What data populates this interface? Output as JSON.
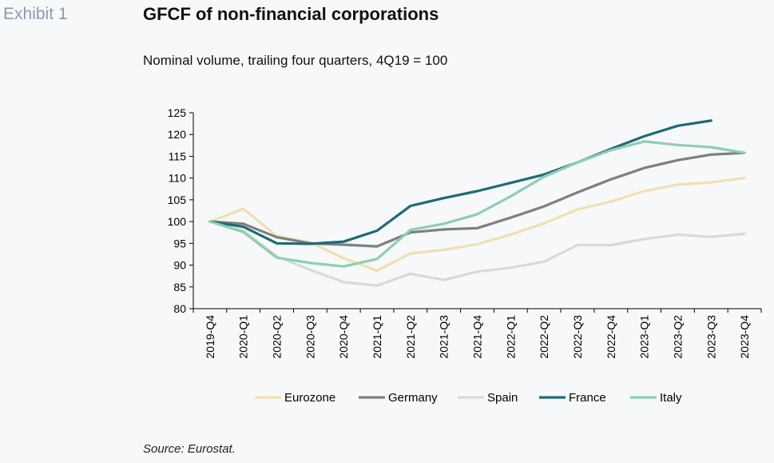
{
  "header": {
    "exhibit": "Exhibit 1",
    "title": "GFCF of non-financial corporations",
    "subtitle": "Nominal volume, trailing four quarters, 4Q19 = 100"
  },
  "footer": {
    "source": "Source: Eurostat."
  },
  "chart_data": {
    "type": "line",
    "x": [
      "2019-Q4",
      "2020-Q1",
      "2020-Q2",
      "2020-Q3",
      "2020-Q4",
      "2021-Q1",
      "2021-Q2",
      "2021-Q3",
      "2021-Q4",
      "2022-Q1",
      "2022-Q2",
      "2022-Q3",
      "2022-Q4",
      "2023-Q1",
      "2023-Q2",
      "2023-Q3",
      "2023-Q4"
    ],
    "ylim": [
      80,
      125
    ],
    "yticks": [
      80,
      85,
      90,
      95,
      100,
      105,
      110,
      115,
      120,
      125
    ],
    "grid": false,
    "legend_position": "bottom",
    "series": [
      {
        "name": "Eurozone",
        "color": "#f2dfb0",
        "values": [
          100,
          102.9,
          96.7,
          95.2,
          91.6,
          88.7,
          92.7,
          93.5,
          94.8,
          97.0,
          99.6,
          102.8,
          104.6,
          107.0,
          108.5,
          109.0,
          110.0
        ]
      },
      {
        "name": "Germany",
        "color": "#7f7f7f",
        "values": [
          100,
          99.5,
          96.4,
          95.0,
          94.7,
          94.3,
          97.5,
          98.2,
          98.5,
          100.9,
          103.5,
          106.7,
          109.7,
          112.3,
          114.1,
          115.4,
          115.8
        ]
      },
      {
        "name": "Spain",
        "color": "#d9d9d9",
        "values": [
          100,
          97.9,
          92.0,
          88.9,
          86.1,
          85.3,
          88.0,
          86.6,
          88.5,
          89.4,
          90.8,
          94.6,
          94.6,
          96.0,
          97.0,
          96.5,
          97.2
        ]
      },
      {
        "name": "France",
        "color": "#1b6b78",
        "values": [
          100,
          98.8,
          95.0,
          94.9,
          95.4,
          97.9,
          103.6,
          105.4,
          107.0,
          108.9,
          110.8,
          113.6,
          116.7,
          119.6,
          122.0,
          123.2,
          null
        ]
      },
      {
        "name": "Italy",
        "color": "#8ecfb0",
        "values": [
          100,
          97.6,
          91.7,
          90.5,
          89.7,
          91.4,
          98.1,
          99.5,
          101.7,
          105.8,
          110.3,
          113.6,
          116.4,
          118.4,
          117.6,
          117.1,
          115.8
        ]
      }
    ]
  }
}
